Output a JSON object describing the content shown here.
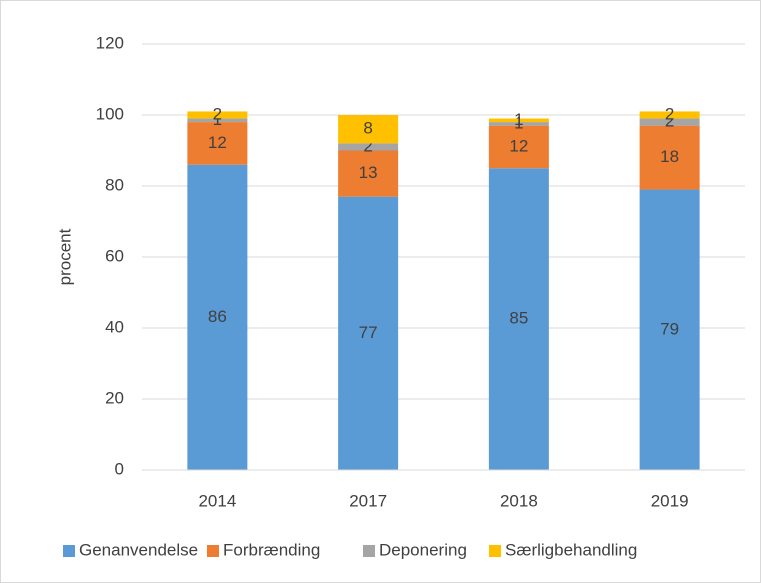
{
  "chart_data": {
    "type": "stacked_bar",
    "y_label": "procent",
    "categories": [
      "2014",
      "2017",
      "2018",
      "2019"
    ],
    "series": [
      {
        "name": "Genanvendelse",
        "color": "#5b9bd5",
        "values": [
          86,
          77,
          85,
          79
        ]
      },
      {
        "name": "Forbrænding",
        "color": "#ed7d31",
        "values": [
          12,
          13,
          12,
          18
        ]
      },
      {
        "name": "Deponering",
        "color": "#a5a5a5",
        "values": [
          1,
          2,
          1,
          2
        ]
      },
      {
        "name": "Særligbehandling",
        "color": "#ffc000",
        "values": [
          2,
          8,
          1,
          2
        ]
      }
    ],
    "ylim": [
      0,
      120
    ],
    "yticks": [
      0,
      20,
      40,
      60,
      80,
      100,
      120
    ],
    "grid": true,
    "legend": "bottom"
  }
}
